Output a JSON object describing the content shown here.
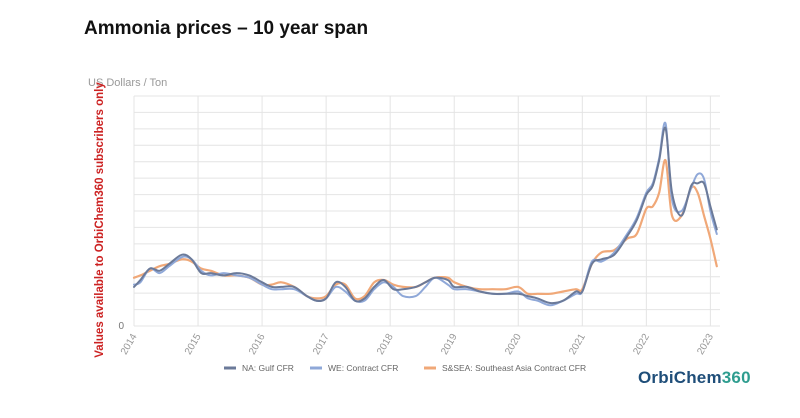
{
  "page": {
    "title": "Ammonia prices – 10 year span",
    "brand": "OrbiChem",
    "brand_accent": "360"
  },
  "chart_data": {
    "type": "line",
    "title": "",
    "ylabel": "US Dollars / Ton",
    "watermark": "Values available to OrbiChem360 subscribers only",
    "xlim": [
      2014.0,
      2023.15
    ],
    "x_ticks": [
      "2014",
      "2015",
      "2016",
      "2017",
      "2018",
      "2019",
      "2020",
      "2021",
      "2022",
      "2023"
    ],
    "y_ticks": [
      "0"
    ],
    "ylim": [
      0,
      100
    ],
    "grid": true,
    "legend_position": "bottom",
    "colors": {
      "na_gulf": "#6b7a99",
      "we_contract": "#8fa8d8",
      "ssea": "#f0a878",
      "watermark": "#cc2222",
      "axis_text": "#999999",
      "grid": "#e4e4e4"
    },
    "series": [
      {
        "name": "NA: Gulf CFR",
        "key": "na_gulf",
        "x": [
          2014.0,
          2014.1,
          2014.25,
          2014.4,
          2014.55,
          2014.75,
          2014.9,
          2015.05,
          2015.2,
          2015.4,
          2015.6,
          2015.8,
          2016.0,
          2016.15,
          2016.3,
          2016.5,
          2016.7,
          2016.85,
          2017.0,
          2017.15,
          2017.3,
          2017.45,
          2017.6,
          2017.75,
          2017.9,
          2018.05,
          2018.2,
          2018.4,
          2018.55,
          2018.7,
          2018.9,
          2019.0,
          2019.2,
          2019.4,
          2019.6,
          2019.8,
          2020.0,
          2020.15,
          2020.3,
          2020.5,
          2020.7,
          2020.9,
          2021.0,
          2021.15,
          2021.3,
          2021.5,
          2021.7,
          2021.85,
          2022.0,
          2022.1,
          2022.2,
          2022.3,
          2022.4,
          2022.55,
          2022.7,
          2022.8,
          2022.9,
          2023.0,
          2023.1
        ],
        "values": [
          17,
          20,
          25,
          24,
          27,
          31,
          29,
          23,
          23,
          22,
          23,
          22,
          19,
          17,
          17,
          17,
          13,
          11,
          12,
          19,
          17,
          11,
          12,
          17,
          20,
          16,
          16,
          17,
          19,
          21,
          20,
          17,
          17,
          15,
          14,
          14,
          14,
          13,
          12,
          10,
          11,
          15,
          15,
          27,
          29,
          31,
          39,
          46,
          57,
          61,
          72,
          86,
          58,
          48,
          61,
          62,
          62,
          52,
          42
        ]
      },
      {
        "name": "WE: Contract CFR",
        "key": "we_contract",
        "x": [
          2014.0,
          2014.1,
          2014.25,
          2014.4,
          2014.55,
          2014.75,
          2014.9,
          2015.05,
          2015.2,
          2015.4,
          2015.6,
          2015.8,
          2016.0,
          2016.15,
          2016.3,
          2016.5,
          2016.7,
          2016.85,
          2017.0,
          2017.15,
          2017.3,
          2017.45,
          2017.6,
          2017.75,
          2017.9,
          2018.05,
          2018.2,
          2018.4,
          2018.55,
          2018.7,
          2018.9,
          2019.0,
          2019.2,
          2019.4,
          2019.6,
          2019.8,
          2020.0,
          2020.15,
          2020.3,
          2020.5,
          2020.7,
          2020.9,
          2021.0,
          2021.15,
          2021.3,
          2021.5,
          2021.7,
          2021.85,
          2022.0,
          2022.1,
          2022.2,
          2022.3,
          2022.4,
          2022.55,
          2022.7,
          2022.8,
          2022.9,
          2023.0,
          2023.1
        ],
        "values": [
          18,
          19,
          25,
          23,
          26,
          30,
          29,
          24,
          22,
          23,
          22,
          21,
          18,
          16,
          16,
          16,
          13,
          11,
          12,
          17,
          15,
          11,
          11,
          16,
          19,
          17,
          13,
          13,
          17,
          21,
          18,
          16,
          16,
          15,
          14,
          14,
          15,
          12,
          11,
          9,
          11,
          14,
          15,
          28,
          28,
          32,
          40,
          47,
          58,
          62,
          73,
          88,
          55,
          50,
          60,
          66,
          64,
          50,
          40
        ]
      },
      {
        "name": "S&SEA: Southeast Asia Contract CFR",
        "key": "ssea",
        "x": [
          2014.0,
          2014.1,
          2014.25,
          2014.4,
          2014.55,
          2014.75,
          2014.9,
          2015.05,
          2015.2,
          2015.4,
          2015.6,
          2015.8,
          2016.0,
          2016.15,
          2016.3,
          2016.5,
          2016.7,
          2016.85,
          2017.0,
          2017.15,
          2017.3,
          2017.45,
          2017.6,
          2017.75,
          2017.9,
          2018.05,
          2018.2,
          2018.4,
          2018.55,
          2018.7,
          2018.9,
          2019.0,
          2019.2,
          2019.4,
          2019.6,
          2019.8,
          2020.0,
          2020.15,
          2020.3,
          2020.5,
          2020.7,
          2020.9,
          2021.0,
          2021.15,
          2021.3,
          2021.5,
          2021.7,
          2021.85,
          2022.0,
          2022.1,
          2022.2,
          2022.3,
          2022.4,
          2022.55,
          2022.7,
          2022.8,
          2022.9,
          2023.0,
          2023.1
        ],
        "values": [
          21,
          22,
          24,
          26,
          27,
          29,
          28,
          25,
          24,
          22,
          22,
          21,
          18,
          18,
          19,
          17,
          13,
          12,
          13,
          18,
          18,
          12,
          13,
          19,
          20,
          18,
          17,
          17,
          19,
          21,
          21,
          19,
          17,
          16,
          16,
          16,
          17,
          14,
          14,
          14,
          15,
          16,
          16,
          27,
          32,
          33,
          38,
          40,
          51,
          52,
          58,
          72,
          48,
          48,
          60,
          58,
          48,
          38,
          26
        ]
      }
    ]
  }
}
